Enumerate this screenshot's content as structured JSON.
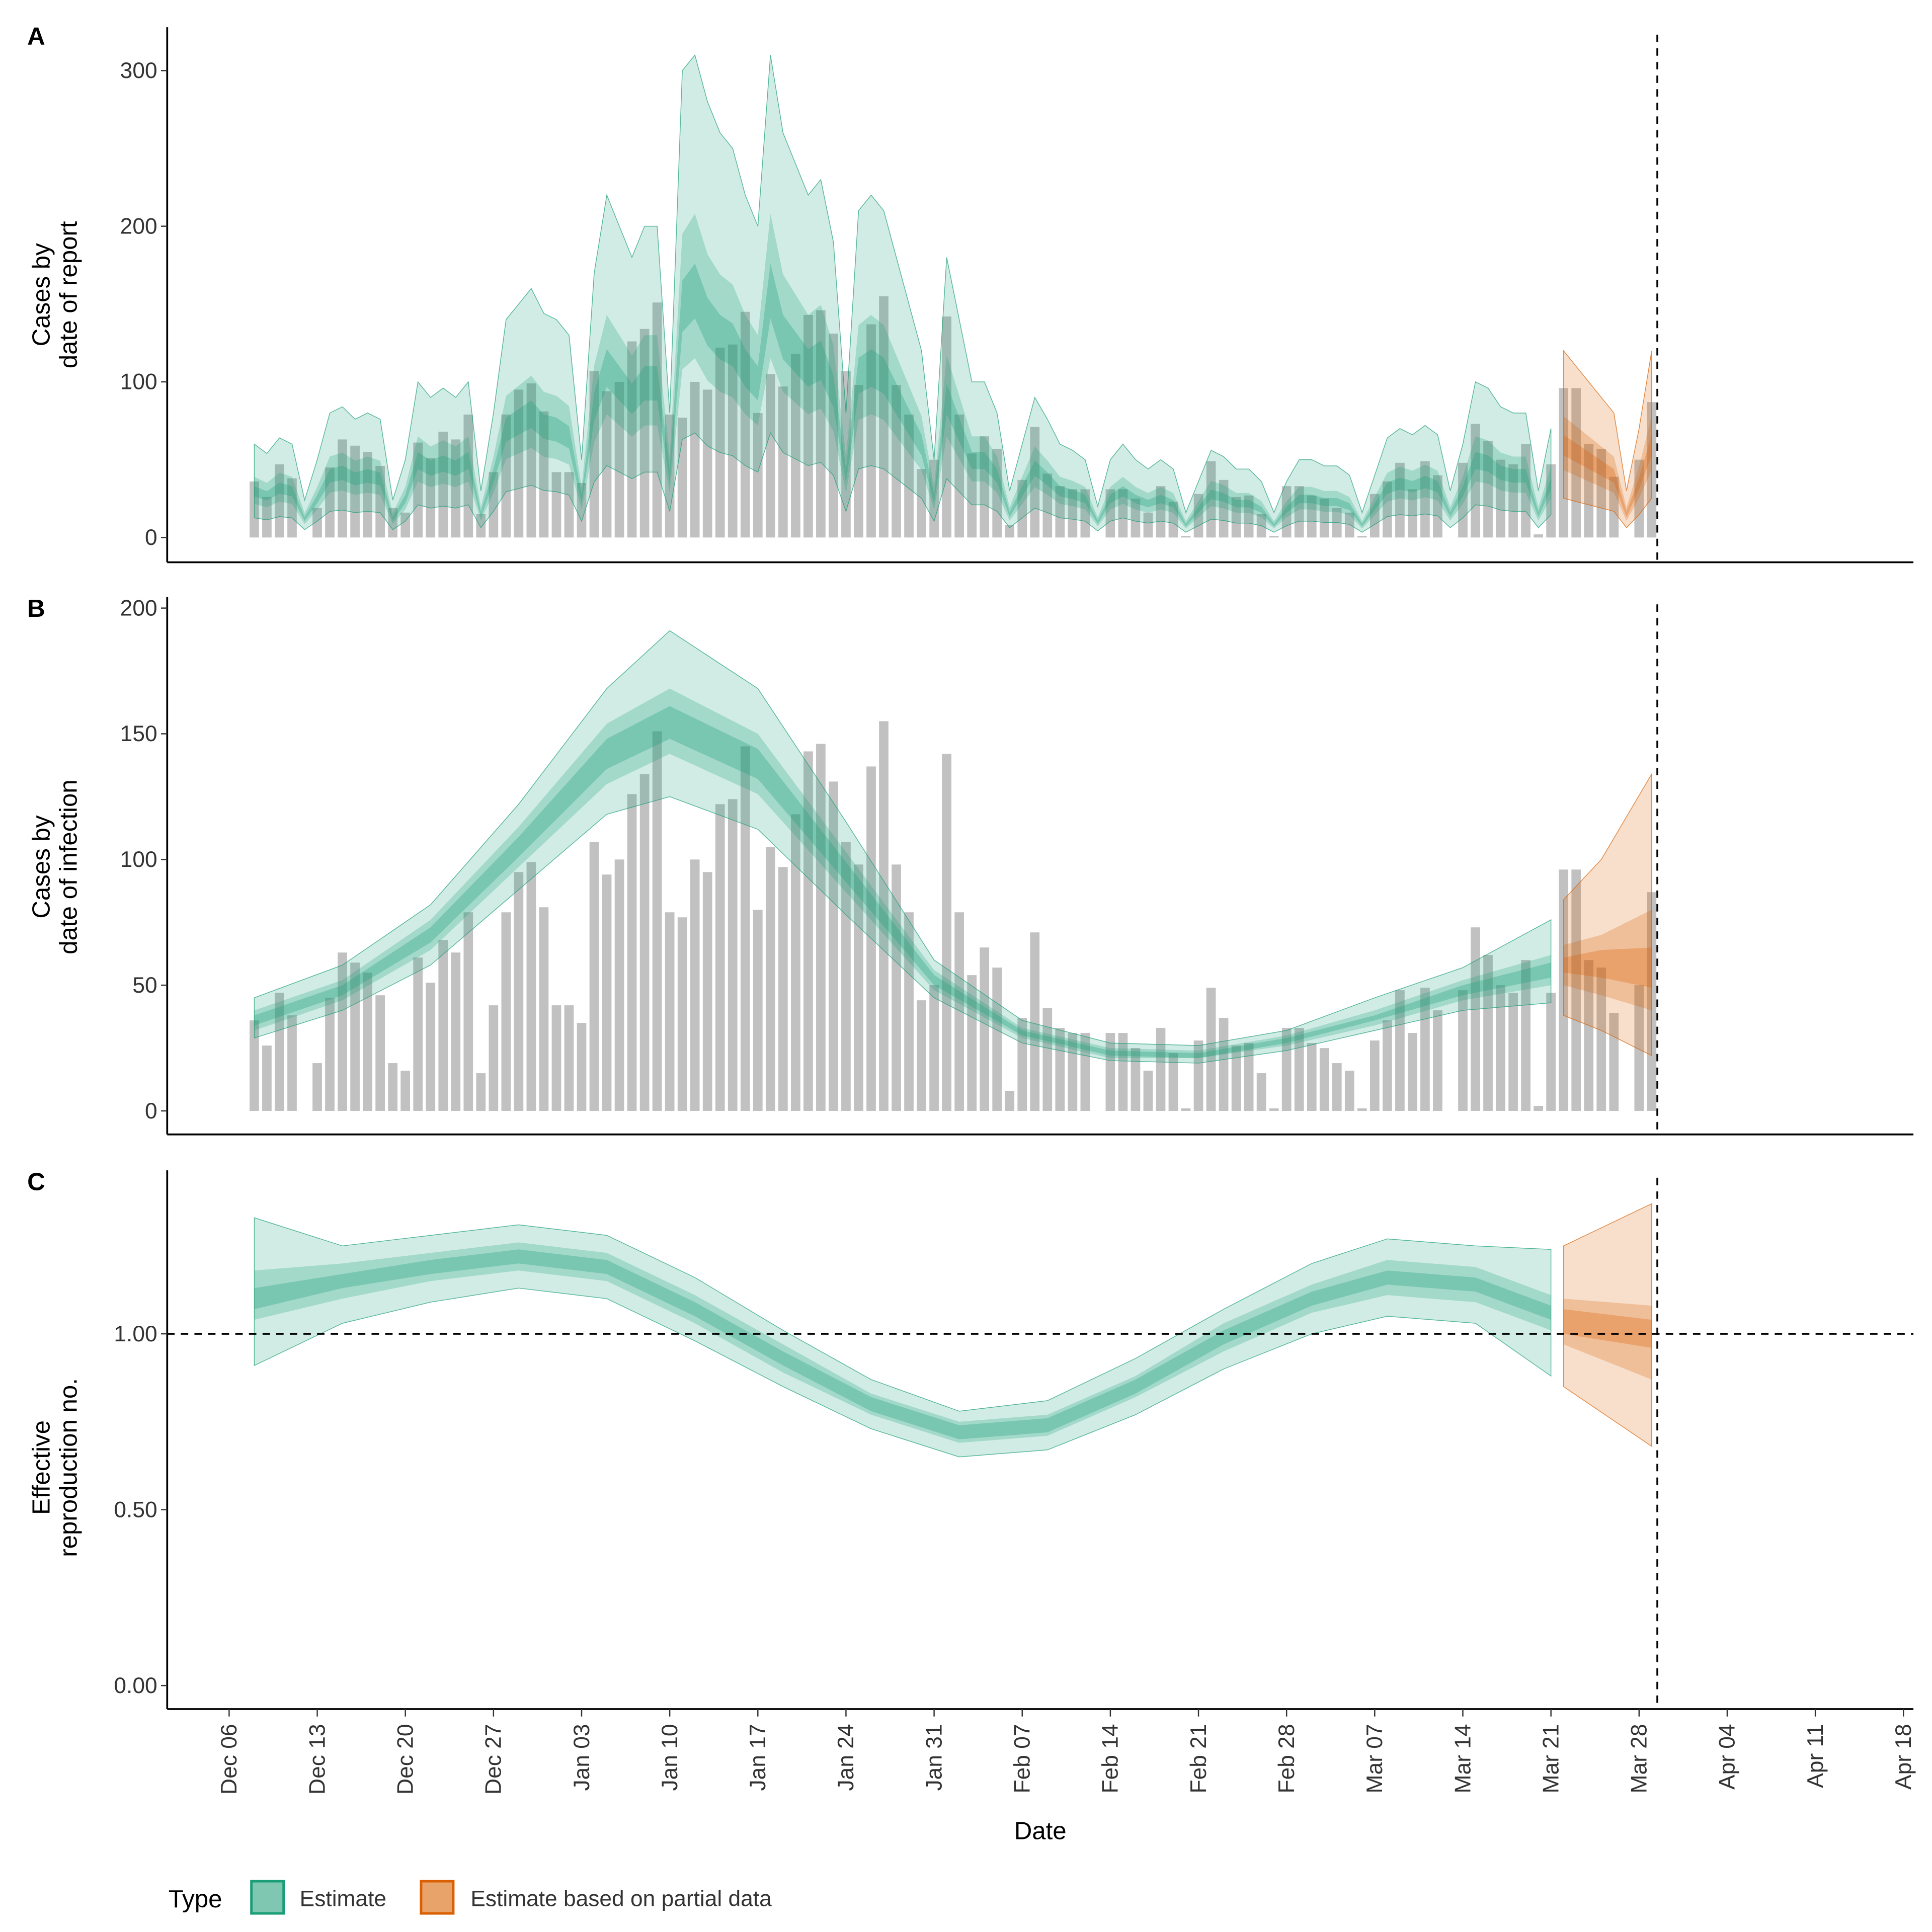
{
  "chart_data": [
    {
      "panel": "A",
      "type": "bar+area",
      "ylabel": [
        "Cases by",
        "date of report"
      ],
      "yticks": [
        "0",
        "100",
        "200",
        "300"
      ],
      "ylim": [
        0,
        310
      ],
      "first_date": "Dec 08",
      "observed_cases": [
        36,
        26,
        47,
        38,
        0,
        19,
        45,
        63,
        59,
        55,
        46,
        19,
        16,
        61,
        51,
        68,
        63,
        79,
        15,
        42,
        79,
        95,
        99,
        81,
        42,
        42,
        35,
        107,
        94,
        100,
        126,
        134,
        151,
        79,
        77,
        100,
        95,
        122,
        124,
        145,
        80,
        105,
        97,
        118,
        143,
        146,
        131,
        107,
        98,
        137,
        155,
        98,
        79,
        44,
        50,
        142,
        79,
        54,
        65,
        57,
        8,
        37,
        71,
        41,
        33,
        31,
        31,
        0,
        31,
        31,
        25,
        16,
        33,
        23,
        1,
        28,
        49,
        37,
        26,
        27,
        15,
        1,
        33,
        33,
        27,
        25,
        19,
        16,
        1,
        28,
        36,
        48,
        31,
        49,
        40,
        0,
        48,
        73,
        62,
        50,
        47,
        60,
        2,
        47,
        96,
        96,
        60,
        57,
        39,
        0,
        50,
        87
      ],
      "estimate_median": [
        30,
        27,
        32,
        30,
        12,
        25,
        40,
        42,
        38,
        40,
        38,
        12,
        25,
        50,
        45,
        48,
        45,
        50,
        15,
        40,
        70,
        75,
        80,
        72,
        70,
        65,
        25,
        85,
        110,
        100,
        90,
        100,
        100,
        40,
        150,
        160,
        140,
        130,
        125,
        110,
        100,
        160,
        130,
        120,
        110,
        115,
        95,
        40,
        105,
        110,
        105,
        90,
        75,
        60,
        25,
        90,
        70,
        50,
        50,
        40,
        15,
        30,
        45,
        38,
        30,
        28,
        25,
        10,
        25,
        30,
        25,
        22,
        25,
        22,
        8,
        18,
        28,
        26,
        22,
        22,
        18,
        8,
        18,
        25,
        25,
        23,
        23,
        20,
        8,
        20,
        32,
        35,
        33,
        36,
        33,
        15,
        30,
        50,
        48,
        42,
        40,
        40,
        15,
        35,
        60,
        55,
        50,
        45,
        40,
        15,
        35,
        60
      ],
      "estimate_until": "Mar 21",
      "partial_from": "Mar 22"
    },
    {
      "panel": "B",
      "type": "bar+area",
      "ylabel": [
        "Cases by",
        "date of infection"
      ],
      "yticks": [
        "0",
        "50",
        "100",
        "150",
        "200"
      ],
      "ylim": [
        0,
        200
      ],
      "estimate": {
        "dates": [
          "Dec 08",
          "Dec 15",
          "Dec 22",
          "Dec 29",
          "Jan 05",
          "Jan 10",
          "Jan 17",
          "Jan 24",
          "Jan 31",
          "Feb 07",
          "Feb 14",
          "Feb 21",
          "Feb 28",
          "Mar 07",
          "Mar 14",
          "Mar 21"
        ],
        "median": [
          36,
          48,
          70,
          105,
          142,
          155,
          138,
          95,
          52,
          31,
          23,
          22,
          28,
          37,
          48,
          56
        ],
        "lower_90": [
          29,
          40,
          58,
          88,
          118,
          125,
          112,
          78,
          45,
          27,
          20,
          19,
          24,
          32,
          40,
          43
        ],
        "upper_90": [
          45,
          58,
          82,
          122,
          168,
          191,
          168,
          115,
          60,
          36,
          27,
          26,
          32,
          45,
          57,
          76
        ],
        "lower_50": [
          32,
          44,
          64,
          97,
          130,
          142,
          126,
          87,
          48,
          29,
          21,
          21,
          26,
          34,
          44,
          50
        ],
        "upper_50": [
          40,
          52,
          76,
          113,
          154,
          168,
          150,
          103,
          56,
          33,
          25,
          24,
          30,
          40,
          52,
          62
        ],
        "lower_20": [
          34,
          46,
          67,
          101,
          136,
          148,
          132,
          91,
          50,
          30,
          22,
          21,
          27,
          36,
          46,
          53
        ],
        "upper_20": [
          38,
          50,
          73,
          109,
          148,
          161,
          144,
          99,
          54,
          32,
          24,
          23,
          29,
          38,
          50,
          59
        ]
      },
      "partial": {
        "dates": [
          "Mar 22",
          "Mar 25",
          "Mar 29"
        ],
        "median": [
          58,
          59,
          57
        ],
        "lower_90": [
          38,
          32,
          22
        ],
        "upper_90": [
          84,
          100,
          134
        ],
        "lower_50": [
          50,
          46,
          40
        ],
        "upper_50": [
          66,
          70,
          80
        ],
        "lower_20": [
          55,
          53,
          49
        ],
        "upper_20": [
          61,
          64,
          65
        ]
      }
    },
    {
      "panel": "C",
      "type": "area",
      "ylabel": [
        "Effective",
        "reproduction no."
      ],
      "yticks": [
        "0.00",
        "0.50",
        "1.00"
      ],
      "ylim": [
        0,
        1.45
      ],
      "reference_line": 1.0,
      "estimate": {
        "dates": [
          "Dec 08",
          "Dec 15",
          "Dec 22",
          "Dec 29",
          "Jan 05",
          "Jan 12",
          "Jan 19",
          "Jan 26",
          "Feb 02",
          "Feb 09",
          "Feb 16",
          "Feb 23",
          "Mar 02",
          "Mar 08",
          "Mar 15",
          "Mar 21"
        ],
        "median": [
          1.1,
          1.15,
          1.19,
          1.22,
          1.19,
          1.07,
          0.93,
          0.8,
          0.72,
          0.74,
          0.85,
          0.99,
          1.1,
          1.16,
          1.14,
          1.06
        ],
        "lower_90": [
          0.91,
          1.03,
          1.09,
          1.13,
          1.1,
          0.98,
          0.85,
          0.73,
          0.65,
          0.67,
          0.77,
          0.9,
          1.0,
          1.05,
          1.03,
          0.88
        ],
        "upper_90": [
          1.33,
          1.25,
          1.28,
          1.31,
          1.28,
          1.16,
          1.01,
          0.87,
          0.78,
          0.81,
          0.93,
          1.07,
          1.2,
          1.27,
          1.25,
          1.24
        ],
        "lower_50": [
          1.04,
          1.1,
          1.15,
          1.18,
          1.15,
          1.03,
          0.89,
          0.77,
          0.69,
          0.71,
          0.82,
          0.95,
          1.06,
          1.11,
          1.09,
          1.01
        ],
        "upper_50": [
          1.18,
          1.2,
          1.23,
          1.26,
          1.23,
          1.11,
          0.97,
          0.83,
          0.75,
          0.77,
          0.88,
          1.03,
          1.14,
          1.21,
          1.19,
          1.11
        ],
        "lower_20": [
          1.07,
          1.13,
          1.17,
          1.2,
          1.17,
          1.05,
          0.91,
          0.78,
          0.7,
          0.72,
          0.83,
          0.97,
          1.08,
          1.14,
          1.12,
          1.04
        ],
        "upper_20": [
          1.13,
          1.17,
          1.21,
          1.24,
          1.21,
          1.09,
          0.95,
          0.82,
          0.74,
          0.76,
          0.87,
          1.01,
          1.12,
          1.18,
          1.16,
          1.08
        ]
      },
      "partial": {
        "dates": [
          "Mar 22",
          "Mar 29"
        ],
        "median": [
          1.03,
          1.0
        ],
        "lower_90": [
          0.85,
          0.68
        ],
        "upper_90": [
          1.25,
          1.37
        ],
        "lower_50": [
          0.97,
          0.87
        ],
        "upper_50": [
          1.1,
          1.08
        ],
        "lower_20": [
          1.0,
          0.96
        ],
        "upper_20": [
          1.07,
          1.04
        ]
      }
    }
  ],
  "x_axis": {
    "label": "Date",
    "ticks": [
      "Dec 06",
      "Dec 13",
      "Dec 20",
      "Dec 27",
      "Jan 03",
      "Jan 10",
      "Jan 17",
      "Jan 24",
      "Jan 31",
      "Feb 07",
      "Feb 14",
      "Feb 21",
      "Feb 28",
      "Mar 07",
      "Mar 14",
      "Mar 21",
      "Mar 28",
      "Apr 04",
      "Apr 11",
      "Apr 18"
    ],
    "vertical_line_date": "Mar 29"
  },
  "legend": {
    "title": "Type",
    "items": [
      {
        "label": "Estimate",
        "color": "#1b9e77"
      },
      {
        "label": "Estimate based on partial data",
        "color": "#d95f02"
      }
    ]
  },
  "colors": {
    "bars": "#bebebe",
    "estimate": "#1b9e77",
    "partial": "#d95f02"
  }
}
